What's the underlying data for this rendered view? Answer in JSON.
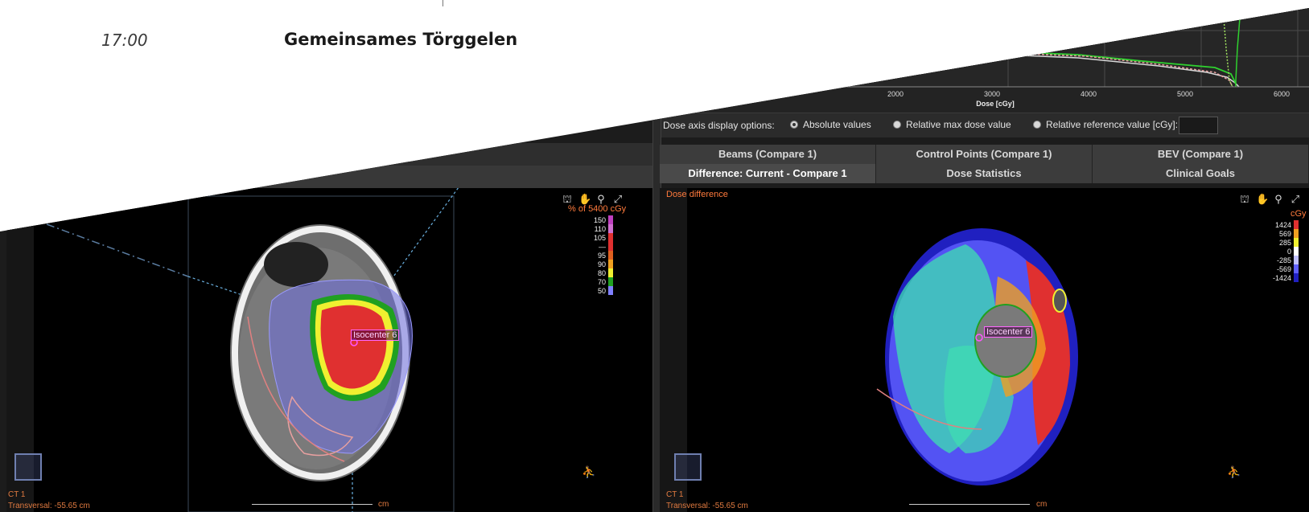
{
  "agenda": {
    "time": "17:00",
    "title": "Gemeinsames Törggelen"
  },
  "dvh": {
    "x_ticks": [
      "2000",
      "3000",
      "4000",
      "5000",
      "6000"
    ],
    "x_label": "Dose [cGy]",
    "line_colors": [
      "#d9d9d9",
      "#2fd12f",
      "#e8a0a0",
      "#a0e060"
    ]
  },
  "dose_axis_options": {
    "label": "Dose axis display options:",
    "options": [
      {
        "label": "Absolute values",
        "selected": true
      },
      {
        "label": "Relative max dose value",
        "selected": false
      },
      {
        "label": "Relative reference value [cGy]:",
        "selected": false
      }
    ],
    "reference_value": ""
  },
  "tabs_row1": [
    {
      "label": "Beams (Compare 1)"
    },
    {
      "label": "Control Points (Compare 1)"
    },
    {
      "label": "BEV (Compare 1)"
    }
  ],
  "tabs_row2": [
    {
      "label": "Difference: Current - Compare 1",
      "active": true
    },
    {
      "label": "Dose Statistics",
      "active": false
    },
    {
      "label": "Clinical Goals",
      "active": false
    }
  ],
  "left_view": {
    "dose_ref": "% of 5400 cGy",
    "legend": [
      {
        "label": "150",
        "color": "#c040c0"
      },
      {
        "label": "110",
        "color": "#d070d0"
      },
      {
        "label": "105",
        "color": "#e03030"
      },
      {
        "label": "—",
        "color": "#e03030"
      },
      {
        "label": "95",
        "color": "#e06020"
      },
      {
        "label": "90",
        "color": "#f0a020"
      },
      {
        "label": "80",
        "color": "#f0f030"
      },
      {
        "label": "70",
        "color": "#20a020"
      },
      {
        "label": "50",
        "color": "#8080ff"
      }
    ],
    "isocenter": "Isocenter 6",
    "image_name": "CT 1",
    "slice": "Transversal: -55.65 cm",
    "ruler_unit": "cm"
  },
  "right_view": {
    "title": "Dose difference",
    "unit": "cGy",
    "legend": [
      {
        "label": "1424",
        "color": "#e03030"
      },
      {
        "label": "569",
        "color": "#f0a020"
      },
      {
        "label": "285",
        "color": "#f0f030"
      },
      {
        "label": "0",
        "color": "#ffffff"
      },
      {
        "label": "-285",
        "color": "#c0c0ff"
      },
      {
        "label": "-569",
        "color": "#6060ff"
      },
      {
        "label": "-1424",
        "color": "#2020c0"
      }
    ],
    "isocenter": "Isocenter 6",
    "image_name": "CT 1",
    "slice": "Transversal: -55.65 cm",
    "ruler_unit": "cm"
  },
  "toolbar_icons": [
    "target-icon",
    "hand-icon",
    "zoom-icon",
    "fullscreen-icon"
  ]
}
